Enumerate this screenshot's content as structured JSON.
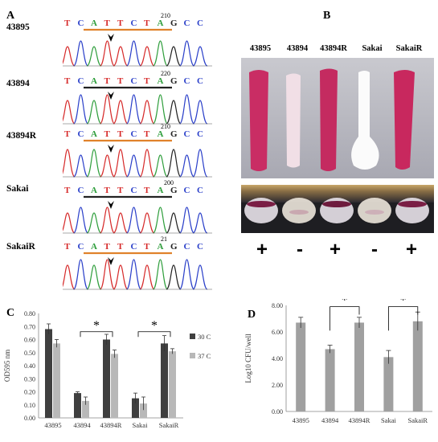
{
  "panel_a": {
    "letter": "A",
    "strains": [
      "43895",
      "43894",
      "43894R",
      "Sakai",
      "SakaiR"
    ],
    "sequence": "TCATTCTAGCC",
    "trace_numbers": [
      "210",
      "220",
      "210",
      "200",
      "21"
    ]
  },
  "panel_b": {
    "letter": "B",
    "strains": [
      "43895",
      "43894",
      "43894R",
      "Sakai",
      "SakaiR"
    ],
    "signs": [
      "+",
      "-",
      "+",
      "-",
      "+"
    ]
  },
  "colors": {
    "dark_bar": "#3f3f3f",
    "light_bar": "#b8b8b8",
    "mid_bar": "#a0a0a0",
    "pink_swab": "#c92d64",
    "trace_green": "#2f9e3c",
    "trace_blue": "#2a3fc9",
    "trace_red": "#d62a2a",
    "trace_black": "#222222",
    "underline_orange": "#e0822b"
  },
  "chart_data": [
    {
      "panel": "C",
      "type": "bar",
      "ylabel": "OD595 nm",
      "ylim": [
        0,
        0.8
      ],
      "yticks": [
        "0.00",
        "0.10",
        "0.20",
        "0.30",
        "0.40",
        "0.50",
        "0.60",
        "0.70",
        "0.80"
      ],
      "categories": [
        "43895",
        "43894",
        "43894R",
        "Sakai",
        "SakaiR"
      ],
      "series": [
        {
          "name": "30 C",
          "values": [
            0.68,
            0.19,
            0.6,
            0.15,
            0.57
          ],
          "errors": [
            0.04,
            0.01,
            0.04,
            0.04,
            0.06
          ]
        },
        {
          "name": "37 C",
          "values": [
            0.57,
            0.13,
            0.49,
            0.11,
            0.51
          ],
          "errors": [
            0.03,
            0.03,
            0.03,
            0.05,
            0.02
          ]
        }
      ],
      "annotations": [
        "*",
        "*"
      ]
    },
    {
      "panel": "D",
      "type": "bar",
      "ylabel": "Log10 CFU/well",
      "ylim": [
        0,
        8
      ],
      "yticks": [
        "0.00",
        "2.00",
        "4.00",
        "6.00",
        "8.00"
      ],
      "categories": [
        "43895",
        "43894",
        "43894R",
        "Sakai",
        "SakaiR"
      ],
      "values": [
        6.7,
        4.7,
        6.7,
        4.1,
        6.8
      ],
      "errors": [
        0.4,
        0.3,
        0.4,
        0.5,
        0.7
      ],
      "annotations": [
        "*",
        "*"
      ]
    }
  ]
}
